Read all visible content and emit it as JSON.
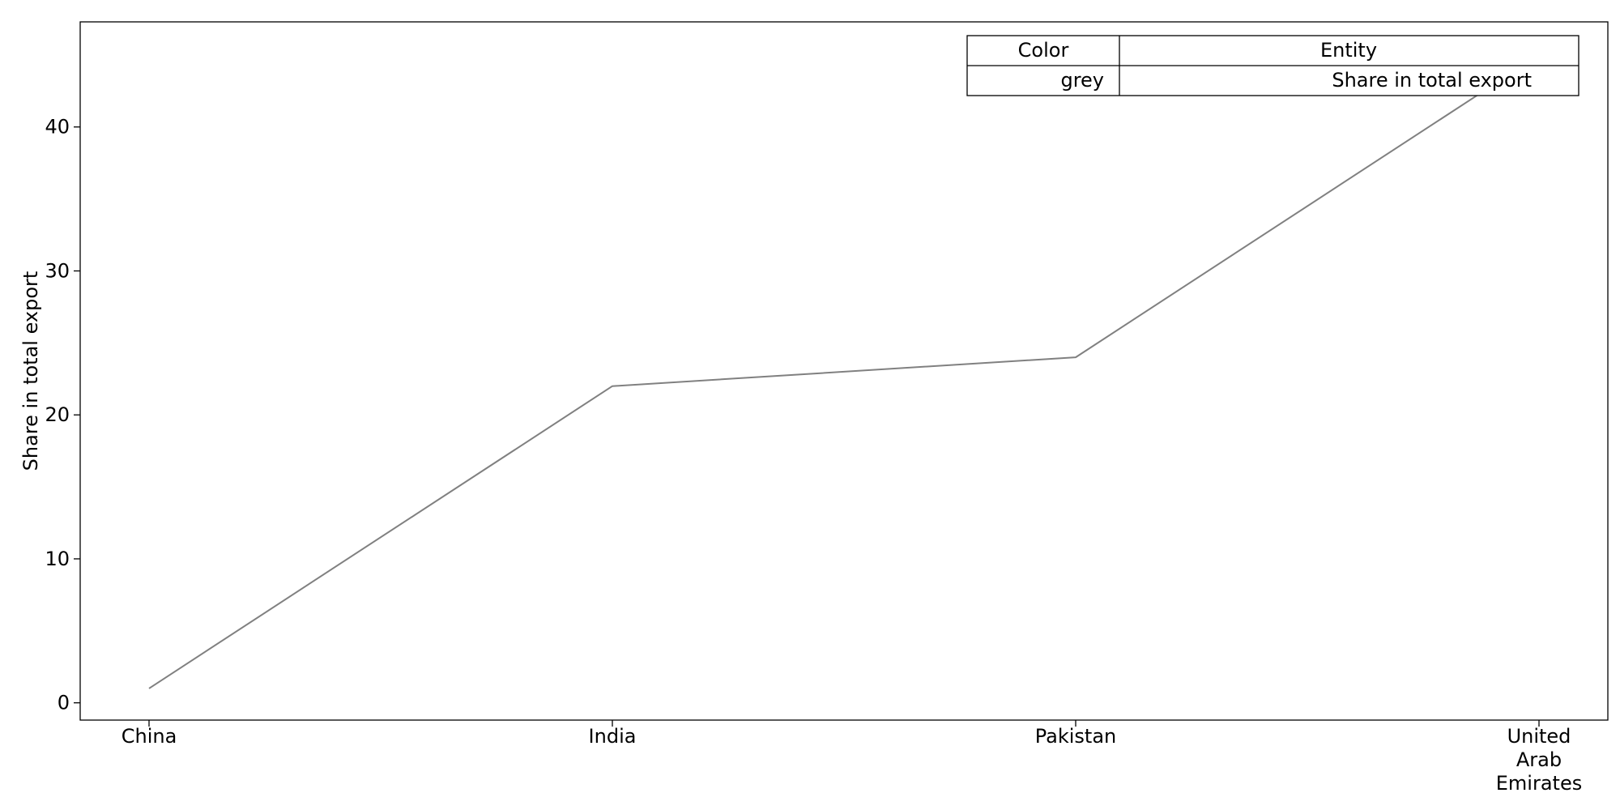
{
  "chart_data": {
    "type": "line",
    "title": "",
    "xlabel": "",
    "ylabel": "Share in total export",
    "categories": [
      "China",
      "India",
      "Pakistan",
      "United Arab Emirates"
    ],
    "category_label_lines": [
      [
        "China"
      ],
      [
        "India"
      ],
      [
        "Pakistan"
      ],
      [
        "United",
        "Arab",
        "Emirates"
      ]
    ],
    "series": [
      {
        "name": "Share in total export",
        "color": "#808080",
        "values": [
          1,
          22,
          24,
          45
        ]
      }
    ],
    "ylim": [
      -1.2,
      47.3
    ],
    "yticks": [
      0,
      10,
      20,
      30,
      40
    ],
    "grid": false,
    "legend": {
      "placement": "top-right",
      "headers": {
        "color": "Color",
        "entity": "Entity"
      },
      "rows": [
        {
          "color": "grey",
          "entity": "Share in total export"
        }
      ]
    }
  }
}
